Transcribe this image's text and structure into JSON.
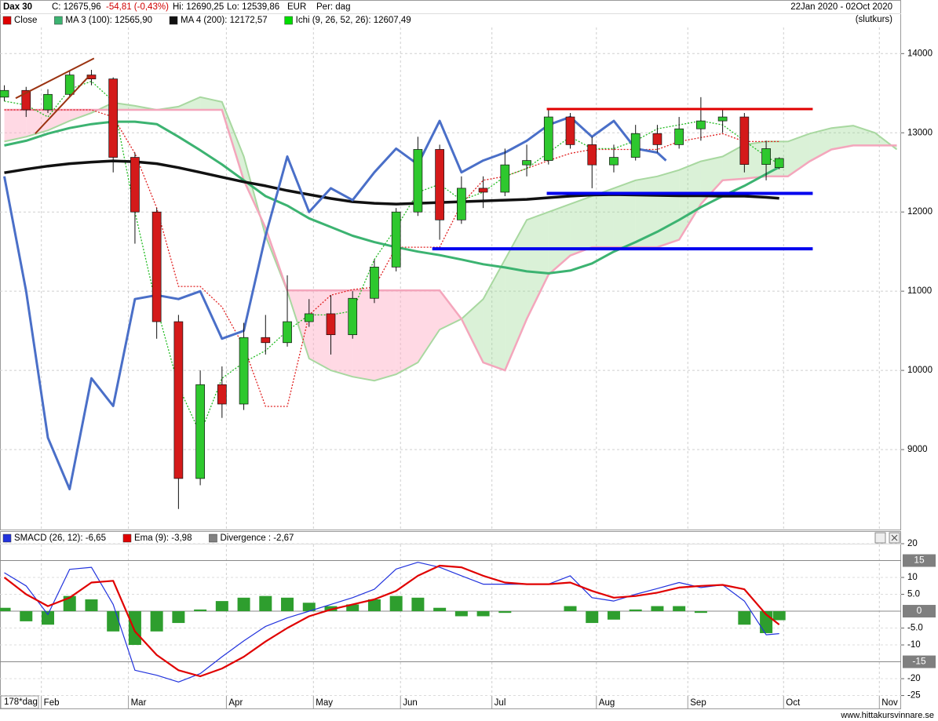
{
  "chart_data": [
    {
      "type": "candlestick",
      "header": {
        "title": "Dax 30",
        "close": "C: 12675,96",
        "change": "-54,81 (-0,43%)",
        "high": "Hi: 12690,25",
        "low": "Lo: 12539,86",
        "currency": "EUR",
        "period": "Per: dag",
        "range": "22Jan 2020 - 02Oct 2020",
        "price_type": "(slutkurs)"
      },
      "xlim": [
        -1,
        206
      ],
      "ylim": [
        7990,
        14330
      ],
      "yticks": [
        9000,
        10000,
        11000,
        12000,
        13000,
        14000
      ],
      "grid": true,
      "x": [
        0,
        5,
        10,
        15,
        20,
        25,
        30,
        35,
        40,
        45,
        50,
        55,
        60,
        65,
        70,
        75,
        80,
        85,
        90,
        95,
        100,
        105,
        110,
        115,
        120,
        125,
        130,
        135,
        140,
        145,
        150,
        155,
        160,
        165,
        170,
        175,
        178
      ],
      "candles": {
        "name": "Close",
        "color": "#e00000",
        "up_color": "#2ec82e",
        "down_color": "#d41a1a",
        "open": [
          13450,
          13535,
          13290,
          13485,
          13730,
          13680,
          12690,
          12000,
          10615,
          8635,
          9820,
          9575,
          10415,
          10350,
          10615,
          10715,
          10450,
          10910,
          11305,
          12000,
          12790,
          11900,
          12300,
          12250,
          12595,
          12650,
          13200,
          12850,
          12595,
          12690,
          12990,
          12850,
          13050,
          13150,
          13200,
          12600,
          12560
        ],
        "high": [
          13600,
          13580,
          13550,
          13780,
          13795,
          13700,
          12750,
          12050,
          10700,
          10000,
          10050,
          10600,
          10700,
          11200,
          10900,
          10950,
          11000,
          11400,
          12050,
          12950,
          12850,
          12450,
          12450,
          12800,
          12850,
          13300,
          13250,
          12950,
          12850,
          13100,
          13100,
          13200,
          13450,
          13300,
          13250,
          12900,
          12690.25
        ],
        "low": [
          13400,
          13200,
          13250,
          13450,
          13600,
          12500,
          11600,
          10400,
          8250,
          8550,
          9400,
          9500,
          10200,
          10300,
          10550,
          10200,
          10400,
          10850,
          11250,
          11950,
          11650,
          11850,
          12050,
          12200,
          12450,
          12600,
          12800,
          12300,
          12500,
          12650,
          12750,
          12800,
          12900,
          13000,
          12500,
          12400,
          12539.86
        ],
        "close": [
          13535,
          13290,
          13485,
          13730,
          13680,
          12690,
          12000,
          10615,
          8635,
          9820,
          9575,
          10415,
          10350,
          10615,
          10715,
          10450,
          10910,
          11305,
          12000,
          12790,
          11900,
          12300,
          12250,
          12595,
          12650,
          13200,
          12850,
          12595,
          12690,
          12990,
          12850,
          13050,
          13150,
          13200,
          12600,
          12800,
          12675.96
        ]
      },
      "cloud": {
        "name": "Ichi (9, 26, 52, 26): 12607,49",
        "color": "#00dd00",
        "span_a_color": "#a8d8a0",
        "span_b_color": "#f4a6bc",
        "x": [
          0,
          5,
          10,
          15,
          20,
          25,
          30,
          35,
          40,
          45,
          50,
          55,
          60,
          65,
          70,
          75,
          80,
          85,
          90,
          95,
          100,
          105,
          110,
          115,
          120,
          125,
          130,
          135,
          140,
          145,
          150,
          155,
          160,
          165,
          170,
          175,
          180,
          185,
          190,
          195,
          200,
          205
        ],
        "span_a": [
          12890,
          12950,
          13030,
          13150,
          13250,
          13380,
          13340,
          13290,
          13330,
          13450,
          13390,
          12700,
          11700,
          11000,
          10150,
          10000,
          9920,
          9870,
          9950,
          10100,
          10515,
          10650,
          10900,
          11400,
          11900,
          12000,
          12100,
          12200,
          12300,
          12400,
          12450,
          12530,
          12640,
          12700,
          12850,
          12890,
          12890,
          12990,
          13060,
          13090,
          13000,
          12790
        ],
        "span_b": [
          13290,
          13290,
          13290,
          13290,
          13290,
          13290,
          13290,
          13290,
          13290,
          13290,
          13290,
          12400,
          11800,
          11010,
          11010,
          11010,
          11010,
          11010,
          11010,
          11010,
          11010,
          10650,
          10100,
          10000,
          10650,
          11210,
          11450,
          11555,
          11555,
          11555,
          11555,
          11650,
          12100,
          12400,
          12420,
          12450,
          12450,
          12640,
          12790,
          12840,
          12840,
          12840
        ]
      },
      "series": [
        {
          "color": "#e02020",
          "style": "dotted",
          "width": 1.3,
          "values": [
            13290,
            13290,
            13290,
            13290,
            13290,
            13200,
            12740,
            12050,
            11060,
            11060,
            10800,
            10300,
            9545,
            9545,
            10700,
            10950,
            11020,
            11050,
            11555,
            11555,
            11555,
            12100,
            12400,
            12450,
            12550,
            12650,
            12740,
            12790,
            12790,
            12790,
            12790,
            12890,
            12940,
            12990,
            12890,
            12890,
            12890
          ]
        },
        {
          "color": "#22bb22",
          "style": "dotted",
          "width": 1.3,
          "values": [
            13400,
            13350,
            13200,
            13550,
            13650,
            13400,
            12000,
            10800,
            9800,
            9200,
            9900,
            10100,
            10250,
            10500,
            10700,
            10700,
            10750,
            11400,
            11800,
            12250,
            12350,
            12150,
            12250,
            12450,
            12550,
            12750,
            12950,
            12800,
            12800,
            12900,
            13050,
            13100,
            13150,
            13100,
            12900,
            12700,
            12607.49
          ]
        },
        {
          "name": "MA 3 (100): 12565,90",
          "color": "#3cb371",
          "style": "solid",
          "width": 3,
          "values": [
            12840,
            12900,
            12990,
            13060,
            13110,
            13140,
            13140,
            13110,
            12950,
            12780,
            12600,
            12400,
            12200,
            12080,
            11920,
            11810,
            11700,
            11620,
            11555,
            11500,
            11455,
            11400,
            11340,
            11300,
            11250,
            11225,
            11260,
            11350,
            11500,
            11620,
            11750,
            11900,
            12060,
            12200,
            12330,
            12480,
            12565.9
          ]
        },
        {
          "name": "MA 4 (200): 12172,57",
          "color": "#111111",
          "style": "solid",
          "width": 3.5,
          "values": [
            12495,
            12540,
            12580,
            12610,
            12630,
            12645,
            12635,
            12610,
            12560,
            12500,
            12440,
            12380,
            12330,
            12270,
            12220,
            12170,
            12130,
            12110,
            12100,
            12110,
            12120,
            12130,
            12140,
            12150,
            12160,
            12180,
            12200,
            12215,
            12220,
            12215,
            12210,
            12205,
            12205,
            12200,
            12200,
            12185,
            12172.57
          ]
        },
        {
          "color": "#4a6fc8",
          "style": "solid",
          "width": 3,
          "x": [
            0,
            5,
            10,
            15,
            20,
            25,
            30,
            35,
            40,
            45,
            50,
            55,
            60,
            65,
            70,
            75,
            80,
            85,
            90,
            95,
            100,
            105,
            110,
            115,
            120,
            125,
            130,
            135,
            140,
            145,
            150,
            152
          ],
          "values": [
            12450,
            11000,
            9150,
            8500,
            9900,
            9550,
            10900,
            10950,
            10900,
            11000,
            10400,
            10500,
            11700,
            12700,
            12000,
            12300,
            12150,
            12500,
            12800,
            12600,
            13150,
            12500,
            12650,
            12750,
            12900,
            13100,
            13200,
            12950,
            13150,
            12800,
            12750,
            12650
          ]
        }
      ],
      "levels": [
        {
          "value": 13300,
          "x": [
            124.6,
            185.7
          ],
          "color": "#e00000",
          "width": 3
        },
        {
          "value": 12235,
          "x": [
            124.6,
            185.7
          ],
          "color": "#0000ee",
          "width": 4
        },
        {
          "value": 11535,
          "x": [
            98.3,
            185.7
          ],
          "color": "#0000ee",
          "width": 4
        }
      ],
      "trendlines": [
        {
          "x": [
            2.6,
            20.6
          ],
          "values": [
            13436,
            13940
          ],
          "color": "#9b3311"
        },
        {
          "x": [
            7.1,
            19.7
          ],
          "values": [
            12990,
            13730
          ],
          "color": "#9b3311"
        }
      ]
    },
    {
      "type": "line",
      "period_label": "178*dag",
      "xlim": [
        -1,
        206
      ],
      "ylim": [
        -26.5,
        20
      ],
      "xticks": [
        {
          "value": 8.5,
          "label": "Feb"
        },
        {
          "value": 28.5,
          "label": "Mar"
        },
        {
          "value": 51,
          "label": "Apr"
        },
        {
          "value": 71,
          "label": "May"
        },
        {
          "value": 91,
          "label": "Jun"
        },
        {
          "value": 112,
          "label": "Jul"
        },
        {
          "value": 136,
          "label": "Aug"
        },
        {
          "value": 157,
          "label": "Sep"
        },
        {
          "value": 179,
          "label": "Oct"
        },
        {
          "value": 201,
          "label": "Nov"
        }
      ],
      "yticks": [
        20,
        10,
        {
          "value": 5,
          "label": "5.0"
        },
        {
          "value": -5,
          "label": "-5.0"
        },
        -10,
        -20,
        -25
      ],
      "levels": [
        15,
        0,
        -15
      ],
      "grid": true,
      "x": [
        0,
        5,
        10,
        15,
        20,
        25,
        30,
        35,
        40,
        45,
        50,
        55,
        60,
        65,
        70,
        75,
        80,
        85,
        90,
        95,
        100,
        105,
        110,
        115,
        120,
        125,
        130,
        135,
        140,
        145,
        150,
        155,
        160,
        165,
        170,
        175,
        178
      ],
      "series": [
        {
          "name": "Divergence : -2,67",
          "color": "#2e9e2e",
          "legend_color": "#808080",
          "style": "bar",
          "values": [
            1,
            -3,
            -4,
            4.5,
            3.5,
            -6,
            -10,
            -6,
            -3.5,
            0.5,
            3,
            4,
            4.5,
            4,
            2.5,
            1.5,
            2,
            3.5,
            4.5,
            4,
            1,
            -1.5,
            -1.5,
            -0.5,
            0,
            0,
            1.5,
            -3.5,
            -2.5,
            0.5,
            1.5,
            1.5,
            -0.5,
            0,
            -4,
            -6.5,
            -2.67
          ]
        },
        {
          "name": "SMACD (26, 12): -6,65",
          "color": "#2233dd",
          "style": "solid",
          "width": 1.2,
          "values": [
            11.4,
            7.5,
            -1,
            12.4,
            13,
            2,
            -17.5,
            -19,
            -21,
            -18.5,
            -13.5,
            -8.8,
            -4.5,
            -2,
            0,
            2,
            4,
            6.5,
            12.5,
            14.5,
            13,
            10.5,
            8,
            8,
            8,
            8,
            10.5,
            4,
            3,
            5,
            6.7,
            8.5,
            7,
            7.8,
            3,
            -7,
            -6.65
          ]
        },
        {
          "name": "Ema (9): -3,98",
          "color": "#e00000",
          "style": "solid",
          "width": 2.2,
          "values": [
            10,
            5,
            1.5,
            4,
            8.5,
            9,
            -6,
            -13,
            -17.5,
            -19.3,
            -17,
            -13.5,
            -9,
            -5,
            -1.5,
            0.5,
            2,
            3.5,
            6,
            10.5,
            13.5,
            13,
            10.5,
            8.5,
            8,
            8,
            8.5,
            6,
            4,
            4.5,
            5.5,
            7,
            7.5,
            7.8,
            6.5,
            -1,
            -3.98
          ]
        }
      ]
    }
  ],
  "footer": "www.hittakursvinnare.se"
}
